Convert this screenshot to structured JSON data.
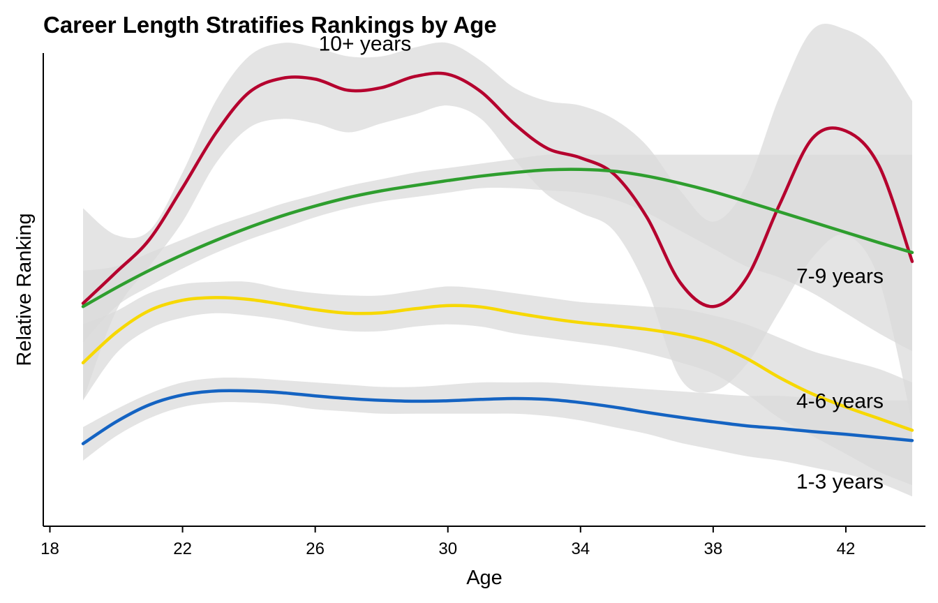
{
  "chart_data": {
    "type": "line",
    "title": "Career Length Stratifies Rankings by Age",
    "xlabel": "Age",
    "ylabel": "Relative Ranking",
    "xlim": [
      17.8,
      44.4
    ],
    "ylim": [
      0,
      100
    ],
    "x_ticks": [
      18,
      22,
      26,
      30,
      34,
      38,
      42
    ],
    "y_ticks_shown": false,
    "grid": false,
    "legend": "none (direct labels on lines)",
    "band_color": "#d9d9d9",
    "series": [
      {
        "name": "10+ years",
        "color": "#b5002e",
        "points": [
          [
            19,
            47.7
          ],
          [
            20,
            54.7
          ],
          [
            21,
            62.0
          ],
          [
            22,
            73.6
          ],
          [
            23,
            85.8
          ],
          [
            24,
            94.9
          ],
          [
            25,
            98.1
          ],
          [
            26,
            97.9
          ],
          [
            27,
            95.4
          ],
          [
            28,
            96.0
          ],
          [
            29,
            98.5
          ],
          [
            30,
            99.0
          ],
          [
            31,
            95.1
          ],
          [
            32,
            87.9
          ],
          [
            33,
            82.4
          ],
          [
            34,
            80.3
          ],
          [
            35,
            76.7
          ],
          [
            36,
            67.0
          ],
          [
            37,
            52.4
          ],
          [
            38,
            47.0
          ],
          [
            39,
            53.3
          ],
          [
            40,
            69.8
          ],
          [
            41,
            84.7
          ],
          [
            42,
            86.3
          ],
          [
            43,
            78.5
          ],
          [
            44,
            57.1
          ]
        ],
        "band_upper": [
          [
            19,
            69
          ],
          [
            20,
            63
          ],
          [
            21,
            64
          ],
          [
            22,
            77
          ],
          [
            23,
            93
          ],
          [
            24,
            103
          ],
          [
            25,
            106
          ],
          [
            26,
            105
          ],
          [
            27,
            103
          ],
          [
            28,
            103
          ],
          [
            29,
            105
          ],
          [
            30,
            106
          ],
          [
            31,
            102
          ],
          [
            32,
            96
          ],
          [
            33,
            93
          ],
          [
            34,
            92
          ],
          [
            35,
            89
          ],
          [
            36,
            83
          ],
          [
            37,
            73
          ],
          [
            38,
            66
          ],
          [
            39,
            74
          ],
          [
            40,
            94
          ],
          [
            41,
            109
          ],
          [
            42,
            109
          ],
          [
            43,
            104
          ],
          [
            44,
            93
          ]
        ],
        "band_lower": [
          [
            19,
            26
          ],
          [
            20,
            46
          ],
          [
            21,
            56
          ],
          [
            22,
            66
          ],
          [
            23,
            79
          ],
          [
            24,
            87
          ],
          [
            25,
            89
          ],
          [
            26,
            88
          ],
          [
            27,
            86
          ],
          [
            28,
            88
          ],
          [
            29,
            90
          ],
          [
            30,
            92
          ],
          [
            31,
            89
          ],
          [
            32,
            80
          ],
          [
            33,
            72
          ],
          [
            34,
            68
          ],
          [
            35,
            64
          ],
          [
            36,
            51
          ],
          [
            37,
            31
          ],
          [
            38,
            28
          ],
          [
            39,
            34
          ],
          [
            40,
            46
          ],
          [
            41,
            58
          ],
          [
            42,
            63
          ],
          [
            43,
            53
          ],
          [
            44,
            21
          ]
        ]
      },
      {
        "name": "7-9 years",
        "color": "#2e9e2e",
        "points": [
          [
            19,
            47.0
          ],
          [
            20,
            51.2
          ],
          [
            21,
            55.1
          ],
          [
            22,
            58.6
          ],
          [
            23,
            61.8
          ],
          [
            24,
            64.7
          ],
          [
            25,
            67.3
          ],
          [
            26,
            69.5
          ],
          [
            27,
            71.4
          ],
          [
            28,
            72.9
          ],
          [
            29,
            74.1
          ],
          [
            30,
            75.2
          ],
          [
            31,
            76.2
          ],
          [
            32,
            77.0
          ],
          [
            33,
            77.6
          ],
          [
            34,
            77.7
          ],
          [
            35,
            77.3
          ],
          [
            36,
            76.2
          ],
          [
            37,
            74.6
          ],
          [
            38,
            72.7
          ],
          [
            39,
            70.5
          ],
          [
            40,
            68.2
          ],
          [
            41,
            65.9
          ],
          [
            42,
            63.6
          ],
          [
            43,
            61.3
          ],
          [
            44,
            59.1
          ]
        ],
        "band_upper": [
          [
            19,
            55
          ],
          [
            20,
            56
          ],
          [
            21,
            59
          ],
          [
            22,
            62
          ],
          [
            23,
            65
          ],
          [
            24,
            67.5
          ],
          [
            25,
            70
          ],
          [
            26,
            72
          ],
          [
            27,
            74
          ],
          [
            28,
            75.5
          ],
          [
            29,
            77
          ],
          [
            30,
            78
          ],
          [
            31,
            79
          ],
          [
            32,
            80
          ],
          [
            33,
            81
          ],
          [
            34,
            81
          ],
          [
            35,
            81
          ],
          [
            36,
            81
          ],
          [
            37,
            81
          ],
          [
            38,
            81
          ],
          [
            39,
            81
          ],
          [
            40,
            81
          ],
          [
            41,
            81
          ],
          [
            42,
            81
          ],
          [
            43,
            81
          ],
          [
            44,
            81
          ]
        ],
        "band_lower": [
          [
            19,
            39
          ],
          [
            20,
            47
          ],
          [
            21,
            51.5
          ],
          [
            22,
            55.5
          ],
          [
            23,
            59
          ],
          [
            24,
            62
          ],
          [
            25,
            64.5
          ],
          [
            26,
            67
          ],
          [
            27,
            69
          ],
          [
            28,
            70.5
          ],
          [
            29,
            71.5
          ],
          [
            30,
            72.5
          ],
          [
            31,
            73.5
          ],
          [
            32,
            73.5
          ],
          [
            33,
            73
          ],
          [
            34,
            72.5
          ],
          [
            35,
            71
          ],
          [
            36,
            68
          ],
          [
            37,
            64
          ],
          [
            38,
            60
          ],
          [
            39,
            56
          ],
          [
            40,
            53.5
          ],
          [
            41,
            50
          ],
          [
            42,
            45.5
          ],
          [
            43,
            41
          ],
          [
            44,
            37
          ]
        ]
      },
      {
        "name": "4-6 years",
        "color": "#f7d800",
        "points": [
          [
            19,
            34.4
          ],
          [
            20,
            41.2
          ],
          [
            21,
            46.1
          ],
          [
            22,
            48.4
          ],
          [
            23,
            49.0
          ],
          [
            24,
            48.6
          ],
          [
            25,
            47.5
          ],
          [
            26,
            46.3
          ],
          [
            27,
            45.5
          ],
          [
            28,
            45.6
          ],
          [
            29,
            46.5
          ],
          [
            30,
            47.2
          ],
          [
            31,
            46.9
          ],
          [
            32,
            45.6
          ],
          [
            33,
            44.4
          ],
          [
            34,
            43.4
          ],
          [
            35,
            42.7
          ],
          [
            36,
            41.9
          ],
          [
            37,
            40.7
          ],
          [
            38,
            38.8
          ],
          [
            39,
            35.4
          ],
          [
            40,
            31.1
          ],
          [
            41,
            27.4
          ],
          [
            42,
            24.5
          ],
          [
            43,
            21.9
          ],
          [
            44,
            19.3
          ]
        ],
        "band_upper": [
          [
            19,
            43
          ],
          [
            20,
            46
          ],
          [
            21,
            50
          ],
          [
            22,
            52
          ],
          [
            23,
            52.5
          ],
          [
            24,
            52.5
          ],
          [
            25,
            51
          ],
          [
            26,
            50
          ],
          [
            27,
            49.5
          ],
          [
            28,
            49.5
          ],
          [
            29,
            50.5
          ],
          [
            30,
            51.5
          ],
          [
            31,
            51
          ],
          [
            32,
            50
          ],
          [
            33,
            49
          ],
          [
            34,
            48
          ],
          [
            35,
            47.5
          ],
          [
            36,
            47
          ],
          [
            37,
            46.5
          ],
          [
            38,
            45
          ],
          [
            39,
            43
          ],
          [
            40,
            40
          ],
          [
            41,
            37
          ],
          [
            42,
            35
          ],
          [
            43,
            33
          ],
          [
            44,
            30
          ]
        ],
        "band_lower": [
          [
            19,
            26
          ],
          [
            20,
            36.5
          ],
          [
            21,
            42
          ],
          [
            22,
            44.5
          ],
          [
            23,
            45.5
          ],
          [
            24,
            45
          ],
          [
            25,
            44
          ],
          [
            26,
            42.5
          ],
          [
            27,
            41.5
          ],
          [
            28,
            41.5
          ],
          [
            29,
            42.5
          ],
          [
            30,
            43
          ],
          [
            31,
            42.5
          ],
          [
            32,
            41
          ],
          [
            33,
            40
          ],
          [
            34,
            39
          ],
          [
            35,
            38
          ],
          [
            36,
            36.5
          ],
          [
            37,
            34.5
          ],
          [
            38,
            32
          ],
          [
            39,
            27.5
          ],
          [
            40,
            22
          ],
          [
            41,
            18
          ],
          [
            42,
            14
          ],
          [
            43,
            10
          ],
          [
            44,
            7
          ]
        ]
      },
      {
        "name": "1-3 years",
        "color": "#1463c2",
        "points": [
          [
            19,
            16.3
          ],
          [
            20,
            21.2
          ],
          [
            21,
            25.0
          ],
          [
            22,
            27.2
          ],
          [
            23,
            28.1
          ],
          [
            24,
            28.1
          ],
          [
            25,
            27.7
          ],
          [
            26,
            27.0
          ],
          [
            27,
            26.4
          ],
          [
            28,
            26.0
          ],
          [
            29,
            25.8
          ],
          [
            30,
            25.9
          ],
          [
            31,
            26.2
          ],
          [
            32,
            26.4
          ],
          [
            33,
            26.2
          ],
          [
            34,
            25.5
          ],
          [
            35,
            24.5
          ],
          [
            36,
            23.3
          ],
          [
            37,
            22.2
          ],
          [
            38,
            21.2
          ],
          [
            39,
            20.3
          ],
          [
            40,
            19.7
          ],
          [
            41,
            19.0
          ],
          [
            42,
            18.4
          ],
          [
            43,
            17.7
          ],
          [
            44,
            17.0
          ]
        ],
        "band_upper": [
          [
            19,
            20
          ],
          [
            20,
            24
          ],
          [
            21,
            27.5
          ],
          [
            22,
            30
          ],
          [
            23,
            31
          ],
          [
            24,
            31
          ],
          [
            25,
            30.5
          ],
          [
            26,
            30
          ],
          [
            27,
            29.5
          ],
          [
            28,
            29
          ],
          [
            29,
            29
          ],
          [
            30,
            29.5
          ],
          [
            31,
            30
          ],
          [
            32,
            30
          ],
          [
            33,
            30
          ],
          [
            34,
            29.5
          ],
          [
            35,
            29
          ],
          [
            36,
            28.5
          ],
          [
            37,
            28
          ],
          [
            38,
            27.5
          ],
          [
            39,
            27
          ],
          [
            40,
            27
          ],
          [
            41,
            26.5
          ],
          [
            42,
            26
          ],
          [
            43,
            26
          ],
          [
            44,
            26
          ]
        ],
        "band_lower": [
          [
            19,
            12.5
          ],
          [
            20,
            18
          ],
          [
            21,
            22
          ],
          [
            22,
            24.5
          ],
          [
            23,
            25.5
          ],
          [
            24,
            25.5
          ],
          [
            25,
            25
          ],
          [
            26,
            24
          ],
          [
            27,
            23.5
          ],
          [
            28,
            23
          ],
          [
            29,
            23
          ],
          [
            30,
            23
          ],
          [
            31,
            23
          ],
          [
            32,
            23
          ],
          [
            33,
            22.5
          ],
          [
            34,
            21.5
          ],
          [
            35,
            20
          ],
          [
            36,
            18.5
          ],
          [
            37,
            16.5
          ],
          [
            38,
            15
          ],
          [
            39,
            13.5
          ],
          [
            40,
            12.5
          ],
          [
            41,
            11
          ],
          [
            42,
            9.5
          ],
          [
            43,
            7.5
          ],
          [
            44,
            4.5
          ]
        ]
      }
    ],
    "annotations": [
      {
        "text": "10+ years",
        "x": 27.5,
        "y": 106
      },
      {
        "text": "7-9 years",
        "x": 44.0,
        "y": 54
      },
      {
        "text": "4-6 years",
        "x": 44.0,
        "y": 26
      },
      {
        "text": "1-3 years",
        "x": 44.0,
        "y": 8
      }
    ]
  }
}
